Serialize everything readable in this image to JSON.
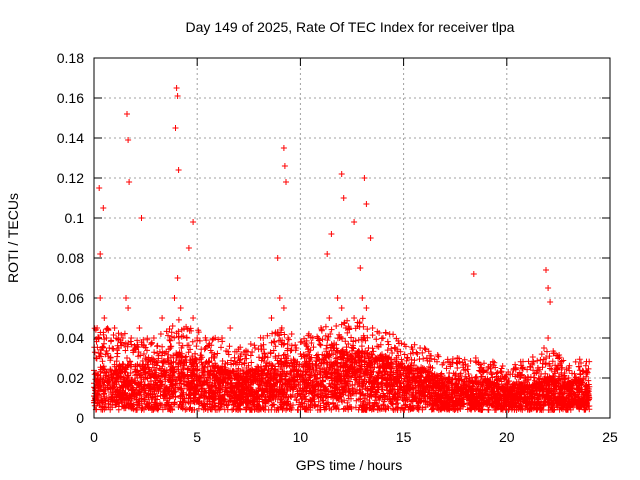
{
  "chart_data": {
    "type": "scatter",
    "title": "Day 149 of 2025, Rate Of TEC Index for receiver tlpa",
    "xlabel": "GPS time / hours",
    "ylabel": "ROTI / TECUs",
    "xlim": [
      0,
      25
    ],
    "ylim": [
      0,
      0.18
    ],
    "xticks": [
      0,
      5,
      10,
      15,
      20,
      25
    ],
    "xtick_labels": [
      "0",
      "5",
      "10",
      "15",
      "20",
      "25"
    ],
    "yticks": [
      0,
      0.02,
      0.04,
      0.06,
      0.08,
      0.1,
      0.12,
      0.14,
      0.16,
      0.18
    ],
    "ytick_labels": [
      "0",
      "0.02",
      "0.04",
      "0.06",
      "0.08",
      "0.1",
      "0.12",
      "0.14",
      "0.16",
      "0.18"
    ],
    "grid": true,
    "marker": "+",
    "series": [
      {
        "name": "ROTI",
        "color": "#ff0000",
        "x": [
          0.05,
          0.1,
          0.15,
          0.2,
          0.3,
          0.35,
          0.4,
          0.45,
          0.5,
          0.55,
          0.6,
          0.7,
          0.8,
          0.9,
          1.0,
          1.1,
          1.2,
          1.3,
          1.4,
          1.5,
          1.55,
          1.6,
          1.65,
          1.7,
          1.8,
          1.9,
          2.0,
          2.1,
          2.2,
          2.3,
          2.5,
          2.7,
          2.9,
          3.1,
          3.3,
          3.5,
          3.7,
          3.8,
          3.9,
          4.0,
          4.05,
          4.1,
          4.2,
          4.3,
          4.5,
          4.7,
          4.8,
          4.9,
          5.0,
          5.2,
          5.4,
          5.6,
          5.8,
          6.0,
          6.2,
          6.4,
          6.6,
          6.8,
          7.0,
          7.2,
          7.4,
          7.6,
          7.8,
          8.0,
          8.2,
          8.4,
          8.6,
          8.8,
          9.0,
          9.1,
          9.2,
          9.3,
          9.4,
          9.6,
          9.8,
          10.0,
          10.2,
          10.4,
          10.6,
          10.8,
          11.0,
          11.2,
          11.4,
          11.6,
          11.8,
          11.9,
          12.0,
          12.1,
          12.2,
          12.4,
          12.6,
          12.8,
          13.0,
          13.1,
          13.2,
          13.3,
          13.5,
          13.8,
          14.0,
          14.3,
          14.6,
          14.9,
          15.2,
          15.5,
          15.8,
          16.1,
          16.4,
          16.7,
          17.0,
          17.3,
          17.6,
          17.9,
          18.2,
          18.5,
          18.8,
          19.1,
          19.4,
          19.7,
          20.0,
          20.3,
          20.6,
          20.9,
          21.2,
          21.5,
          21.8,
          21.9,
          22.0,
          22.1,
          22.4,
          22.7,
          23.0,
          23.3,
          23.6,
          23.9,
          0.25,
          0.45,
          1.6,
          1.65,
          1.7,
          4.0,
          4.05,
          3.95,
          4.1,
          9.2,
          9.25,
          9.3,
          12.0,
          12.1,
          13.1,
          13.2,
          11.5,
          12.6,
          18.4,
          21.9,
          22.0,
          22.1,
          0.3,
          2.3,
          4.6,
          4.8,
          8.9,
          11.3,
          12.9,
          13.4
        ],
        "y": [
          0.015,
          0.03,
          0.045,
          0.02,
          0.06,
          0.01,
          0.035,
          0.025,
          0.05,
          0.02,
          0.04,
          0.018,
          0.03,
          0.012,
          0.045,
          0.02,
          0.035,
          0.015,
          0.04,
          0.025,
          0.06,
          0.03,
          0.055,
          0.02,
          0.04,
          0.015,
          0.035,
          0.02,
          0.045,
          0.018,
          0.03,
          0.015,
          0.04,
          0.02,
          0.05,
          0.015,
          0.035,
          0.025,
          0.06,
          0.03,
          0.07,
          0.02,
          0.055,
          0.025,
          0.04,
          0.015,
          0.05,
          0.03,
          0.04,
          0.02,
          0.035,
          0.015,
          0.03,
          0.02,
          0.04,
          0.015,
          0.045,
          0.02,
          0.03,
          0.012,
          0.025,
          0.015,
          0.035,
          0.02,
          0.04,
          0.018,
          0.05,
          0.03,
          0.06,
          0.045,
          0.055,
          0.03,
          0.04,
          0.02,
          0.035,
          0.015,
          0.03,
          0.02,
          0.04,
          0.025,
          0.045,
          0.03,
          0.05,
          0.035,
          0.06,
          0.04,
          0.055,
          0.03,
          0.045,
          0.025,
          0.05,
          0.03,
          0.06,
          0.04,
          0.055,
          0.035,
          0.045,
          0.025,
          0.04,
          0.02,
          0.035,
          0.015,
          0.03,
          0.02,
          0.035,
          0.015,
          0.025,
          0.018,
          0.02,
          0.012,
          0.025,
          0.015,
          0.02,
          0.03,
          0.012,
          0.025,
          0.015,
          0.02,
          0.01,
          0.015,
          0.012,
          0.02,
          0.015,
          0.025,
          0.035,
          0.03,
          0.04,
          0.02,
          0.025,
          0.015,
          0.02,
          0.012,
          0.018,
          0.015,
          0.115,
          0.105,
          0.152,
          0.139,
          0.118,
          0.165,
          0.161,
          0.145,
          0.124,
          0.135,
          0.126,
          0.118,
          0.122,
          0.11,
          0.12,
          0.107,
          0.092,
          0.098,
          0.072,
          0.074,
          0.065,
          0.058,
          0.082,
          0.1,
          0.085,
          0.098,
          0.08,
          0.082,
          0.075,
          0.09
        ],
        "density_profile": {
          "hours": [
            0,
            1,
            2,
            3,
            4,
            5,
            6,
            7,
            8,
            9,
            10,
            11,
            12,
            13,
            14,
            15,
            16,
            17,
            18,
            19,
            20,
            21,
            22,
            23,
            24
          ],
          "roti_baseline": [
            0.015,
            0.016,
            0.017,
            0.018,
            0.02,
            0.019,
            0.017,
            0.014,
            0.016,
            0.018,
            0.02,
            0.02,
            0.022,
            0.022,
            0.02,
            0.017,
            0.015,
            0.013,
            0.012,
            0.012,
            0.01,
            0.011,
            0.013,
            0.012,
            0.012
          ],
          "roti_upper": [
            0.045,
            0.045,
            0.04,
            0.04,
            0.05,
            0.045,
            0.04,
            0.035,
            0.04,
            0.045,
            0.04,
            0.045,
            0.05,
            0.05,
            0.045,
            0.04,
            0.035,
            0.03,
            0.03,
            0.03,
            0.025,
            0.03,
            0.035,
            0.03,
            0.03
          ]
        }
      }
    ]
  }
}
